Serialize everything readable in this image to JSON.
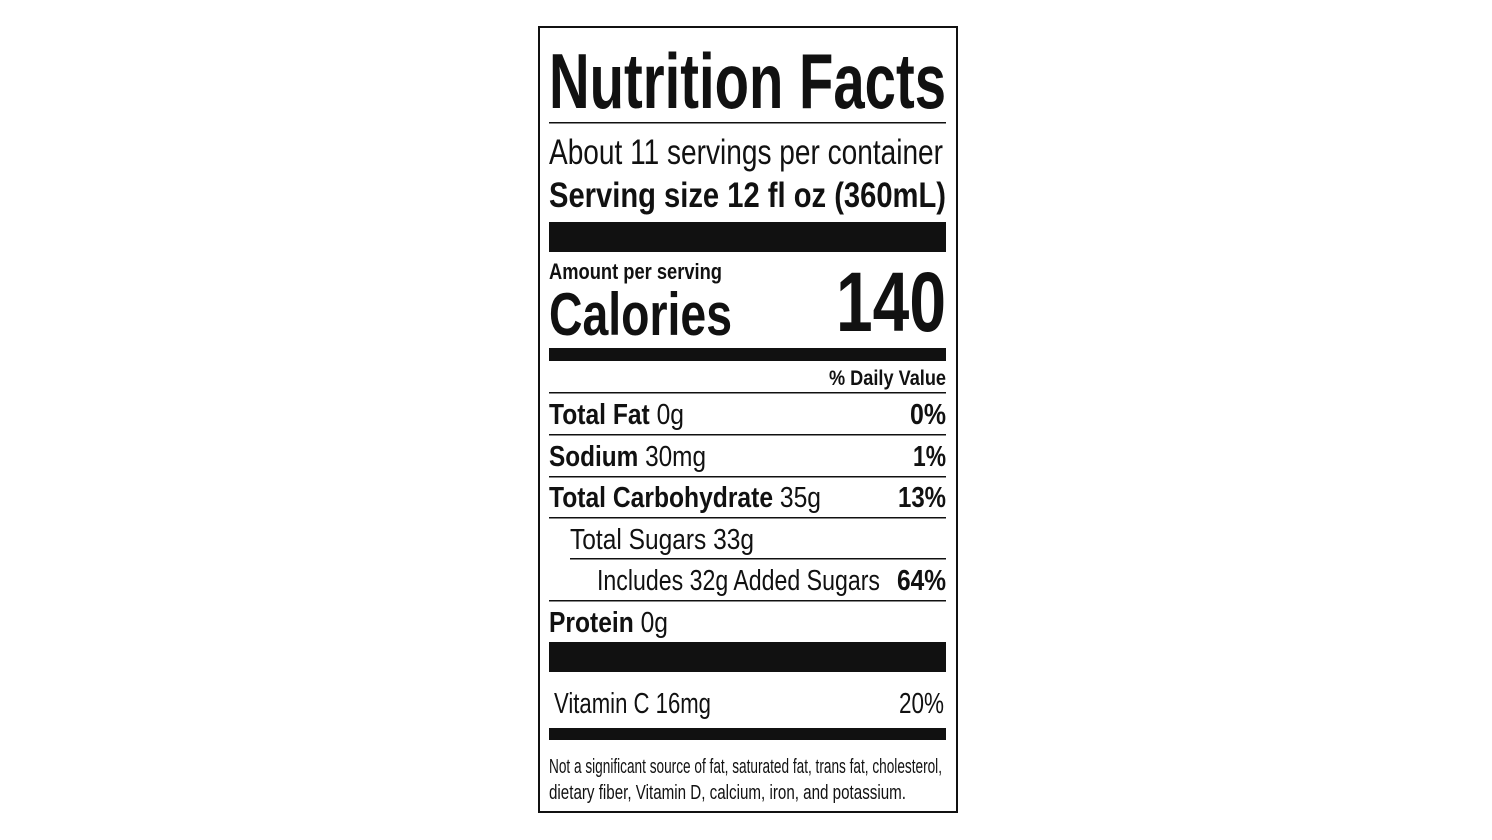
{
  "title": "Nutrition Facts",
  "servings": "About 11 servings per container",
  "serving_size": {
    "label": "Serving size",
    "value": "12 fl oz (360mL)"
  },
  "calories": {
    "amount_label": "Amount per serving",
    "label": "Calories",
    "value": 140
  },
  "daily_value_header": "% Daily Value",
  "nutrients": [
    {
      "name": "Total Fat",
      "amount": "0g",
      "dv": "0%"
    },
    {
      "name": "Sodium",
      "amount": "30mg",
      "dv": "1%"
    },
    {
      "name": "Total Carbohydrate",
      "amount": "35g",
      "dv": "13%"
    },
    {
      "name": "Total Sugars",
      "amount": "33g"
    },
    {
      "name": "Includes 32g Added Sugars",
      "dv": "64%"
    },
    {
      "name": "Protein",
      "amount": "0g"
    }
  ],
  "vitamins": [
    {
      "name": "Vitamin C",
      "amount": "16mg",
      "dv": "20%"
    }
  ],
  "footnote": [
    "Not a significant source of fat, saturated fat, trans fat, cholesterol,",
    "dietary fiber, Vitamin D, calcium, iron, and potassium."
  ]
}
